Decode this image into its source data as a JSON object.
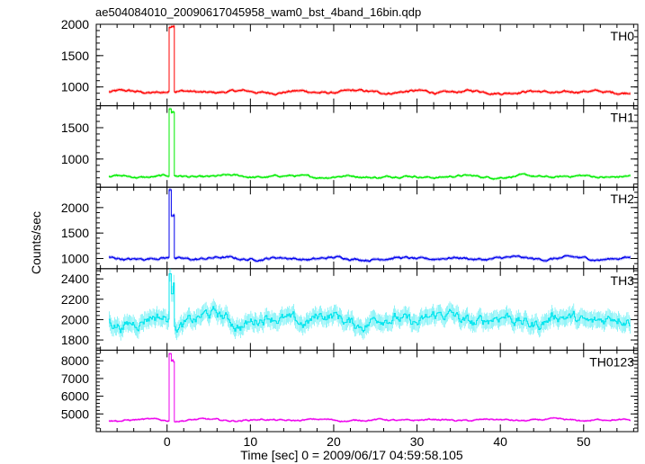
{
  "title": "ae504084010_20090617045958_wam0_bst_4band_16bin.qdp",
  "xlabel": "Time [sec] 0 = 2009/06/17 04:59:58.105",
  "ylabel": "Counts/sec",
  "chart_data": {
    "type": "line",
    "title": "ae504084010_20090617045958_wam0_bst_4band_16bin.qdp",
    "xlabel": "Time [sec] 0 = 2009/06/17 04:59:58.105",
    "ylabel": "Counts/sec",
    "xlim": [
      -8.5,
      56.5
    ],
    "xticks": [
      0,
      10,
      20,
      30,
      40,
      50
    ],
    "grid": false,
    "panels": [
      {
        "name": "TH0",
        "color": "#ff0000",
        "ylim": [
          700,
          2000
        ],
        "yticks": [
          1000,
          1500,
          2000
        ],
        "baseline": 920,
        "noise": 40,
        "peak": [
          {
            "x": 0.3,
            "y": 1950
          },
          {
            "x": 0.6,
            "y": 1980
          }
        ]
      },
      {
        "name": "TH1",
        "color": "#00ee00",
        "ylim": [
          550,
          1850
        ],
        "yticks": [
          1000,
          1500
        ],
        "baseline": 720,
        "noise": 35,
        "peak": [
          {
            "x": 0.3,
            "y": 1800
          },
          {
            "x": 0.6,
            "y": 1750
          }
        ]
      },
      {
        "name": "TH2",
        "color": "#0000ee",
        "ylim": [
          800,
          2400
        ],
        "yticks": [
          1000,
          1500,
          2000
        ],
        "baseline": 1000,
        "noise": 50,
        "peak": [
          {
            "x": 0.3,
            "y": 2350
          },
          {
            "x": 0.6,
            "y": 1850
          }
        ]
      },
      {
        "name": "TH3",
        "color": "#00e5ee",
        "ylim": [
          1700,
          2500
        ],
        "yticks": [
          1800,
          2000,
          2200,
          2400
        ],
        "baseline": 2000,
        "noise": 130,
        "peak": [
          {
            "x": 0.3,
            "y": 2450
          },
          {
            "x": 0.6,
            "y": 2300
          }
        ]
      },
      {
        "name": "TH0123",
        "color": "#ee00ee",
        "ylim": [
          4000,
          8600
        ],
        "yticks": [
          5000,
          6000,
          7000,
          8000
        ],
        "baseline": 4650,
        "noise": 100,
        "peak": [
          {
            "x": 0.3,
            "y": 8400
          },
          {
            "x": 0.6,
            "y": 8000
          }
        ]
      }
    ]
  }
}
